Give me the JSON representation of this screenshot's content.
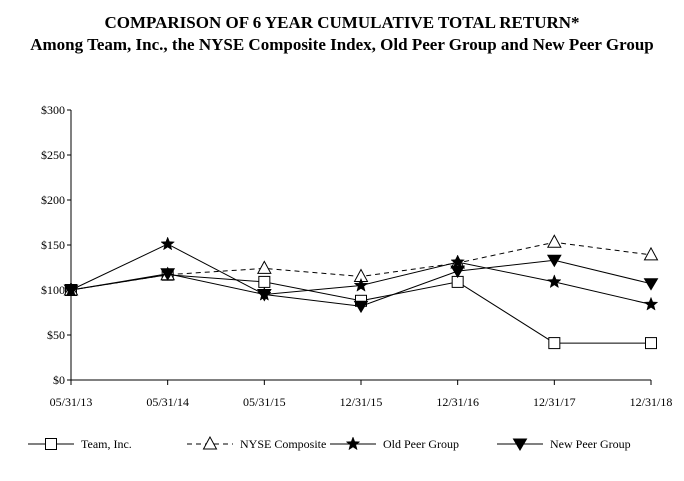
{
  "chart_data": {
    "type": "line",
    "title": "COMPARISON OF 6 YEAR CUMULATIVE TOTAL RETURN*",
    "subtitle": "Among Team, Inc., the NYSE Composite Index, Old Peer Group and New Peer Group",
    "xlabel": "",
    "ylabel": "",
    "categories": [
      "05/31/13",
      "05/31/14",
      "05/31/15",
      "12/31/15",
      "12/31/16",
      "12/31/17",
      "12/31/18"
    ],
    "y_tick_labels": [
      "$0",
      "$50",
      "$100",
      "$150",
      "$200",
      "$250",
      "$300"
    ],
    "y_ticks": [
      0,
      50,
      100,
      150,
      200,
      250,
      300
    ],
    "ylim": [
      0,
      300
    ],
    "grid": false,
    "legend": "bottom",
    "series": [
      {
        "name": "Team, Inc.",
        "marker": "square-open",
        "dash": "solid",
        "values": [
          100,
          117,
          109,
          88,
          109,
          41,
          41
        ]
      },
      {
        "name": "NYSE Composite",
        "marker": "triangle-up-open",
        "dash": "dashed",
        "values": [
          100,
          117,
          124,
          115,
          130,
          153,
          139
        ]
      },
      {
        "name": "Old Peer Group",
        "marker": "star-filled",
        "dash": "solid",
        "values": [
          100,
          151,
          95,
          105,
          131,
          109,
          84
        ]
      },
      {
        "name": "New Peer Group",
        "marker": "triangle-down-filled",
        "dash": "solid",
        "values": [
          100,
          118,
          95,
          82,
          121,
          133,
          107
        ]
      }
    ]
  }
}
